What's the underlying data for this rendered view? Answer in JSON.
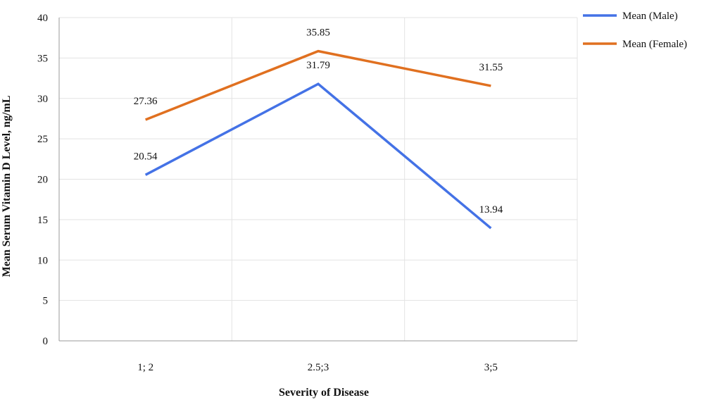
{
  "chart_data": {
    "type": "line",
    "categories": [
      "1; 2",
      "2.5;3",
      "3;5"
    ],
    "series": [
      {
        "name": "Mean (Male)",
        "values": [
          20.54,
          31.79,
          13.94
        ],
        "color": "#4472e6"
      },
      {
        "name": "Mean (Female)",
        "values": [
          27.36,
          35.85,
          31.55
        ],
        "color": "#e07020"
      }
    ],
    "data_labels": [
      [
        "20.54",
        "31.79",
        "13.94"
      ],
      [
        "27.36",
        "35.85",
        "31.55"
      ]
    ],
    "xlabel": "Severity of Disease",
    "ylabel": "Mean Serum Vitamin D Level, ng/mL",
    "ylim": [
      0,
      40
    ],
    "yticks": [
      0,
      5,
      10,
      15,
      20,
      25,
      30,
      35,
      40
    ],
    "grid": true,
    "legend_position": "top-right"
  }
}
